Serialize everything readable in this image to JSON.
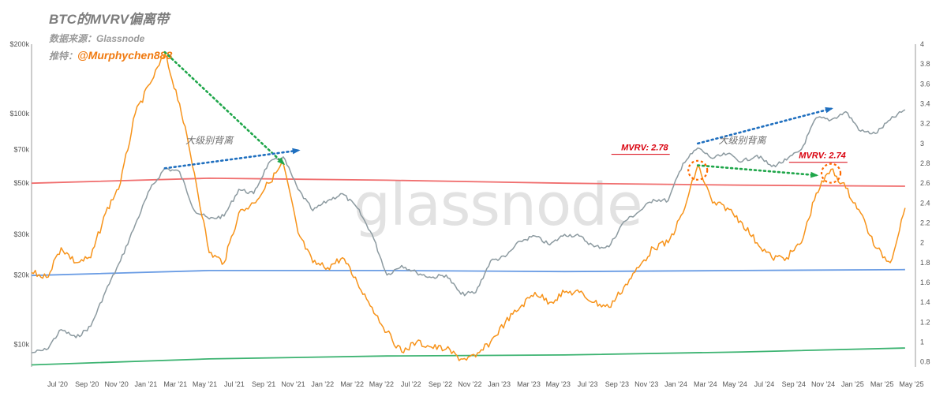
{
  "header": {
    "title": "BTC的MVRV偏离带",
    "source": "数据来源：Glassnode",
    "credit_prefix": "推特：",
    "credit_handle": "@Murphychen888"
  },
  "watermark": "glassnode",
  "colors": {
    "mvrv": "#f7931a",
    "price": "#8c9aa0",
    "red_band": "#f06e6e",
    "blue_band": "#6a9ce4",
    "green_band": "#3cb371",
    "trend_blue": "#1f6fbf",
    "trend_green": "#1fa64a",
    "circle": "#ff6a00",
    "annotation_red": "#d9000d"
  },
  "chart_data": {
    "type": "line",
    "title": "BTC的MVRV偏离带",
    "x_ticks": [
      "Jul '20",
      "Sep '20",
      "Nov '20",
      "Jan '21",
      "Mar '21",
      "May '21",
      "Jul '21",
      "Sep '21",
      "Nov '21",
      "Jan '22",
      "Mar '22",
      "May '22",
      "Jul '22",
      "Sep '22",
      "Nov '22",
      "Jan '23",
      "Mar '23",
      "May '23",
      "Jul '23",
      "Sep '23",
      "Nov '23",
      "Jan '24",
      "Mar '24",
      "May '24",
      "Jul '24",
      "Sep '24",
      "Nov '24",
      "Jan '25",
      "Mar '25",
      "May '25"
    ],
    "y_left": {
      "scale": "log",
      "range": [
        8000,
        200000
      ],
      "ticks": [
        {
          "value": 200000,
          "label": "$200k"
        },
        {
          "value": 100000,
          "label": "$100k"
        },
        {
          "value": 70000,
          "label": "$70k"
        },
        {
          "value": 50000,
          "label": "$50k"
        },
        {
          "value": 30000,
          "label": "$30k"
        },
        {
          "value": 20000,
          "label": "$20k"
        },
        {
          "value": 10000,
          "label": "$10k"
        }
      ]
    },
    "y_right": {
      "scale": "linear",
      "range": [
        0.75,
        4.0
      ],
      "ticks": [
        "0.8",
        "1",
        "1.2",
        "1.4",
        "1.6",
        "1.8",
        "2",
        "2.2",
        "2.4",
        "2.6",
        "2.8",
        "3",
        "3.2",
        "3.4",
        "3.6",
        "3.8",
        "4"
      ]
    },
    "series": [
      {
        "name": "MVRV",
        "axis": "right",
        "points": [
          [
            "2020-06",
            1.7
          ],
          [
            "2020-07",
            1.65
          ],
          [
            "2020-08",
            1.95
          ],
          [
            "2020-09",
            1.8
          ],
          [
            "2020-10",
            1.85
          ],
          [
            "2020-11",
            2.3
          ],
          [
            "2020-12",
            2.6
          ],
          [
            "2021-01",
            3.3
          ],
          [
            "2021-02",
            3.6
          ],
          [
            "2021-03",
            3.9
          ],
          [
            "2021-04",
            3.4
          ],
          [
            "2021-05",
            2.7
          ],
          [
            "2021-06",
            1.9
          ],
          [
            "2021-07",
            1.8
          ],
          [
            "2021-08",
            2.3
          ],
          [
            "2021-09",
            2.4
          ],
          [
            "2021-10",
            2.6
          ],
          [
            "2021-11",
            2.8
          ],
          [
            "2021-12",
            2.1
          ],
          [
            "2022-01",
            1.8
          ],
          [
            "2022-02",
            1.75
          ],
          [
            "2022-03",
            1.85
          ],
          [
            "2022-04",
            1.6
          ],
          [
            "2022-05",
            1.35
          ],
          [
            "2022-06",
            1.1
          ],
          [
            "2022-07",
            0.9
          ],
          [
            "2022-08",
            1.0
          ],
          [
            "2022-09",
            0.95
          ],
          [
            "2022-10",
            0.93
          ],
          [
            "2022-11",
            0.83
          ],
          [
            "2022-12",
            0.85
          ],
          [
            "2023-01",
            1.0
          ],
          [
            "2023-02",
            1.2
          ],
          [
            "2023-03",
            1.35
          ],
          [
            "2023-04",
            1.5
          ],
          [
            "2023-05",
            1.4
          ],
          [
            "2023-06",
            1.5
          ],
          [
            "2023-07",
            1.5
          ],
          [
            "2023-08",
            1.4
          ],
          [
            "2023-09",
            1.35
          ],
          [
            "2023-10",
            1.55
          ],
          [
            "2023-11",
            1.75
          ],
          [
            "2023-12",
            1.95
          ],
          [
            "2024-01",
            2.0
          ],
          [
            "2024-02",
            2.3
          ],
          [
            "2024-03",
            2.78
          ],
          [
            "2024-04",
            2.4
          ],
          [
            "2024-05",
            2.35
          ],
          [
            "2024-06",
            2.2
          ],
          [
            "2024-07",
            2.0
          ],
          [
            "2024-08",
            1.85
          ],
          [
            "2024-09",
            1.85
          ],
          [
            "2024-10",
            2.0
          ],
          [
            "2024-11",
            2.5
          ],
          [
            "2024-12",
            2.74
          ],
          [
            "2025-01",
            2.55
          ],
          [
            "2025-02",
            2.3
          ],
          [
            "2025-03",
            1.95
          ],
          [
            "2025-04",
            1.8
          ],
          [
            "2025-05",
            2.35
          ]
        ]
      },
      {
        "name": "Price",
        "axis": "left",
        "points": [
          [
            "2020-06",
            9200
          ],
          [
            "2020-07",
            9500
          ],
          [
            "2020-08",
            11600
          ],
          [
            "2020-09",
            10700
          ],
          [
            "2020-10",
            12000
          ],
          [
            "2020-11",
            17000
          ],
          [
            "2020-12",
            23000
          ],
          [
            "2021-01",
            33000
          ],
          [
            "2021-02",
            47000
          ],
          [
            "2021-03",
            58000
          ],
          [
            "2021-04",
            56000
          ],
          [
            "2021-05",
            38000
          ],
          [
            "2021-06",
            35000
          ],
          [
            "2021-07",
            36000
          ],
          [
            "2021-08",
            47000
          ],
          [
            "2021-09",
            45000
          ],
          [
            "2021-10",
            61000
          ],
          [
            "2021-11",
            65000
          ],
          [
            "2021-12",
            47000
          ],
          [
            "2022-01",
            38000
          ],
          [
            "2022-02",
            42000
          ],
          [
            "2022-03",
            45000
          ],
          [
            "2022-04",
            39000
          ],
          [
            "2022-05",
            30000
          ],
          [
            "2022-06",
            20000
          ],
          [
            "2022-07",
            22000
          ],
          [
            "2022-08",
            20500
          ],
          [
            "2022-09",
            19500
          ],
          [
            "2022-10",
            20000
          ],
          [
            "2022-11",
            16500
          ],
          [
            "2022-12",
            16800
          ],
          [
            "2023-01",
            23000
          ],
          [
            "2023-02",
            24000
          ],
          [
            "2023-03",
            28000
          ],
          [
            "2023-04",
            29500
          ],
          [
            "2023-05",
            27000
          ],
          [
            "2023-06",
            30000
          ],
          [
            "2023-07",
            29500
          ],
          [
            "2023-08",
            26500
          ],
          [
            "2023-09",
            26500
          ],
          [
            "2023-10",
            34000
          ],
          [
            "2023-11",
            37500
          ],
          [
            "2023-12",
            42500
          ],
          [
            "2024-01",
            42000
          ],
          [
            "2024-02",
            61000
          ],
          [
            "2024-03",
            71000
          ],
          [
            "2024-04",
            64000
          ],
          [
            "2024-05",
            67000
          ],
          [
            "2024-06",
            62000
          ],
          [
            "2024-07",
            66000
          ],
          [
            "2024-08",
            59000
          ],
          [
            "2024-09",
            63000
          ],
          [
            "2024-10",
            70000
          ],
          [
            "2024-11",
            96000
          ],
          [
            "2024-12",
            94000
          ],
          [
            "2025-01",
            102000
          ],
          [
            "2025-02",
            84000
          ],
          [
            "2025-03",
            82000
          ],
          [
            "2025-04",
            94000
          ],
          [
            "2025-05",
            104000
          ]
        ]
      }
    ],
    "bands": [
      {
        "name": "red",
        "axis": "right",
        "values": [
          [
            "2020-06",
            2.6
          ],
          [
            "2021-06",
            2.65
          ],
          [
            "2022-06",
            2.63
          ],
          [
            "2023-06",
            2.6
          ],
          [
            "2024-06",
            2.58
          ],
          [
            "2025-05",
            2.57
          ]
        ]
      },
      {
        "name": "blue",
        "axis": "right",
        "values": [
          [
            "2020-06",
            1.67
          ],
          [
            "2021-06",
            1.72
          ],
          [
            "2022-06",
            1.72
          ],
          [
            "2023-06",
            1.71
          ],
          [
            "2024-06",
            1.72
          ],
          [
            "2025-05",
            1.73
          ]
        ]
      },
      {
        "name": "green",
        "axis": "right",
        "values": [
          [
            "2020-06",
            0.77
          ],
          [
            "2021-06",
            0.83
          ],
          [
            "2022-06",
            0.86
          ],
          [
            "2023-06",
            0.87
          ],
          [
            "2024-06",
            0.9
          ],
          [
            "2025-05",
            0.94
          ]
        ]
      }
    ],
    "trendlines": [
      {
        "color": "trend_green",
        "axis": "right",
        "from": [
          "2021-03",
          3.92
        ],
        "to": [
          "2021-11",
          2.8
        ]
      },
      {
        "color": "trend_blue",
        "axis": "right",
        "from": [
          "2021-03",
          2.75
        ],
        "to": [
          "2021-12",
          2.93
        ]
      },
      {
        "color": "trend_blue",
        "axis": "right",
        "from": [
          "2024-03",
          3.0
        ],
        "to": [
          "2024-12",
          3.35
        ]
      },
      {
        "color": "trend_green",
        "axis": "right",
        "from": [
          "2024-03",
          2.78
        ],
        "to": [
          "2024-11",
          2.68
        ]
      }
    ],
    "circles": [
      [
        "2024-03",
        2.73
      ],
      [
        "2024-12",
        2.7
      ]
    ],
    "annotations": [
      {
        "id": "mvrv_2024",
        "text": "MVRV: 2.78",
        "at": [
          "2024-01",
          2.93
        ]
      },
      {
        "id": "mvrv_2025",
        "text": "MVRV: 2.74",
        "at": [
          "2025-01",
          2.85
        ]
      },
      {
        "id": "div_2021",
        "text": "大级别背离",
        "at": [
          "2021-06",
          3.0
        ]
      },
      {
        "id": "div_2024",
        "text": "大级别背离",
        "at": [
          "2024-06",
          3.0
        ]
      }
    ]
  }
}
